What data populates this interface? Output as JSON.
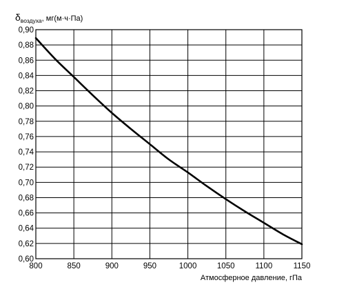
{
  "chart_data": {
    "type": "line",
    "title": "",
    "ylabel_main": "δ",
    "ylabel_subscript": "воздуха",
    "ylabel_unit": ", мг(м·ч·Па)",
    "xlabel": "Атмосферное давление, гПа",
    "xlim": [
      800,
      1150
    ],
    "ylim": [
      0.6,
      0.9
    ],
    "x_ticks": [
      800,
      850,
      900,
      950,
      1000,
      1050,
      1100,
      1150
    ],
    "x_tick_labels": [
      "800",
      "850",
      "900",
      "950",
      "1000",
      "1050",
      "1100",
      "1150"
    ],
    "y_ticks": [
      0.6,
      0.62,
      0.64,
      0.66,
      0.68,
      0.7,
      0.72,
      0.74,
      0.76,
      0.78,
      0.8,
      0.82,
      0.84,
      0.86,
      0.88,
      0.9
    ],
    "y_tick_labels": [
      "0,60",
      "0,62",
      "0,64",
      "0,66",
      "0,68",
      "0,70",
      "0,72",
      "0,74",
      "0,76",
      "0,78",
      "0,80",
      "0,82",
      "0,84",
      "0,86",
      "0,88",
      "0,90"
    ],
    "grid": true,
    "series": [
      {
        "x": [
          800,
          825,
          850,
          875,
          900,
          925,
          950,
          975,
          1000,
          1025,
          1050,
          1075,
          1100,
          1125,
          1150
        ],
        "y": [
          0.889,
          0.862,
          0.838,
          0.814,
          0.791,
          0.77,
          0.75,
          0.73,
          0.713,
          0.695,
          0.678,
          0.662,
          0.647,
          0.632,
          0.619
        ]
      }
    ]
  }
}
